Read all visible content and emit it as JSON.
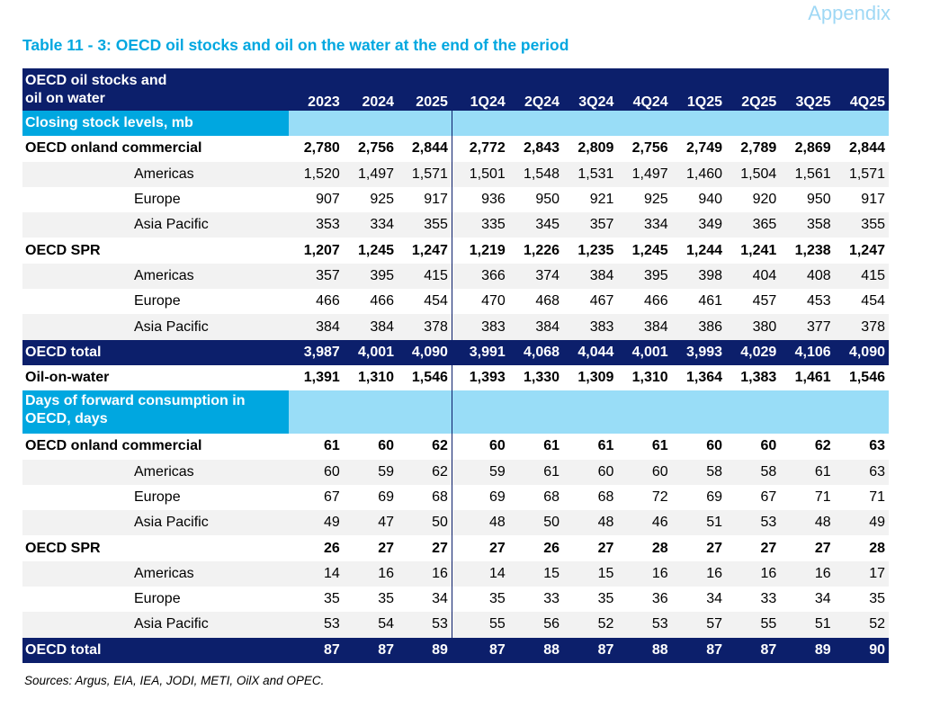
{
  "appendix_label": "Appendix",
  "title": "Table 11 - 3: OECD oil stocks and oil on the water at the end of the period",
  "header": {
    "label_line1": "OECD oil stocks and",
    "label_line2": "oil on water",
    "columns": [
      "2023",
      "2024",
      "2025",
      "1Q24",
      "2Q24",
      "3Q24",
      "4Q24",
      "1Q25",
      "2Q25",
      "3Q25",
      "4Q25"
    ]
  },
  "section1": {
    "label": "Closing stock levels, mb",
    "rows": [
      {
        "label": "OECD onland commercial",
        "values": [
          "2,780",
          "2,756",
          "2,844",
          "2,772",
          "2,843",
          "2,809",
          "2,756",
          "2,749",
          "2,789",
          "2,869",
          "2,844"
        ]
      },
      {
        "label": "Americas",
        "values": [
          "1,520",
          "1,497",
          "1,571",
          "1,501",
          "1,548",
          "1,531",
          "1,497",
          "1,460",
          "1,504",
          "1,561",
          "1,571"
        ]
      },
      {
        "label": "Europe",
        "values": [
          "907",
          "925",
          "917",
          "936",
          "950",
          "921",
          "925",
          "940",
          "920",
          "950",
          "917"
        ]
      },
      {
        "label": "Asia Pacific",
        "values": [
          "353",
          "334",
          "355",
          "335",
          "345",
          "357",
          "334",
          "349",
          "365",
          "358",
          "355"
        ]
      },
      {
        "label": "OECD SPR",
        "values": [
          "1,207",
          "1,245",
          "1,247",
          "1,219",
          "1,226",
          "1,235",
          "1,245",
          "1,244",
          "1,241",
          "1,238",
          "1,247"
        ]
      },
      {
        "label": "Americas",
        "values": [
          "357",
          "395",
          "415",
          "366",
          "374",
          "384",
          "395",
          "398",
          "404",
          "408",
          "415"
        ]
      },
      {
        "label": "Europe",
        "values": [
          "466",
          "466",
          "454",
          "470",
          "468",
          "467",
          "466",
          "461",
          "457",
          "453",
          "454"
        ]
      },
      {
        "label": "Asia Pacific",
        "values": [
          "384",
          "384",
          "378",
          "383",
          "384",
          "383",
          "384",
          "386",
          "380",
          "377",
          "378"
        ]
      },
      {
        "label": "OECD total",
        "values": [
          "3,987",
          "4,001",
          "4,090",
          "3,991",
          "4,068",
          "4,044",
          "4,001",
          "3,993",
          "4,029",
          "4,106",
          "4,090"
        ]
      },
      {
        "label": "Oil-on-water",
        "values": [
          "1,391",
          "1,310",
          "1,546",
          "1,393",
          "1,330",
          "1,309",
          "1,310",
          "1,364",
          "1,383",
          "1,461",
          "1,546"
        ]
      }
    ]
  },
  "section2": {
    "label_line1": "Days of forward consumption in",
    "label_line2": "OECD, days",
    "rows": [
      {
        "label": "OECD onland commercial",
        "values": [
          "61",
          "60",
          "62",
          "60",
          "61",
          "61",
          "61",
          "60",
          "60",
          "62",
          "63"
        ]
      },
      {
        "label": "Americas",
        "values": [
          "60",
          "59",
          "62",
          "59",
          "61",
          "60",
          "60",
          "58",
          "58",
          "61",
          "63"
        ]
      },
      {
        "label": "Europe",
        "values": [
          "67",
          "69",
          "68",
          "69",
          "68",
          "68",
          "72",
          "69",
          "67",
          "71",
          "71"
        ]
      },
      {
        "label": "Asia Pacific",
        "values": [
          "49",
          "47",
          "50",
          "48",
          "50",
          "48",
          "46",
          "51",
          "53",
          "48",
          "49"
        ]
      },
      {
        "label": "OECD SPR",
        "values": [
          "26",
          "27",
          "27",
          "27",
          "26",
          "27",
          "28",
          "27",
          "27",
          "27",
          "28"
        ]
      },
      {
        "label": "Americas",
        "values": [
          "14",
          "16",
          "16",
          "14",
          "15",
          "15",
          "16",
          "16",
          "16",
          "16",
          "17"
        ]
      },
      {
        "label": "Europe",
        "values": [
          "35",
          "35",
          "34",
          "35",
          "33",
          "35",
          "36",
          "34",
          "33",
          "34",
          "35"
        ]
      },
      {
        "label": "Asia Pacific",
        "values": [
          "53",
          "54",
          "53",
          "55",
          "56",
          "52",
          "53",
          "57",
          "55",
          "51",
          "52"
        ]
      },
      {
        "label": "OECD total",
        "values": [
          "87",
          "87",
          "89",
          "87",
          "88",
          "87",
          "88",
          "87",
          "87",
          "89",
          "90"
        ]
      }
    ]
  },
  "footnote": "Sources: Argus, EIA, IEA, JODI, METI, OilX and OPEC."
}
